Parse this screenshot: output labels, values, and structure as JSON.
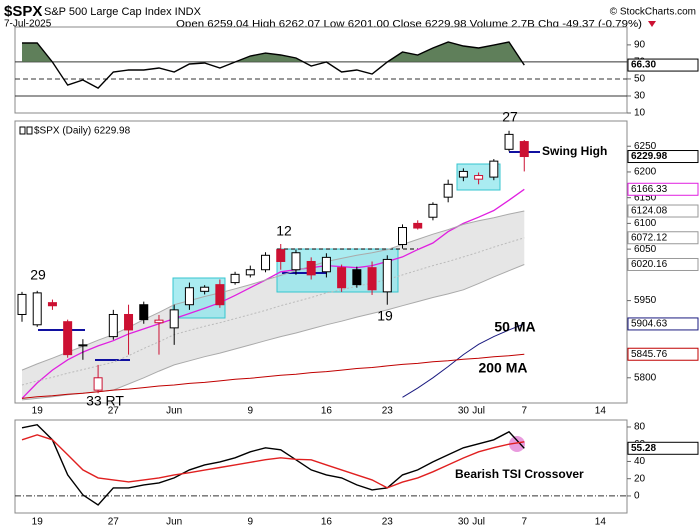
{
  "header": {
    "symbol": "$SPX",
    "name": "S&P 500 Large Cap Index INDX",
    "copyright": "© StockCharts.com",
    "date": "7-Jul-2025",
    "quote": "Open 6259.04 High 6262.07 Low 6201.00 Close 6229.98 Volume 2.7B Chg -49.37 (-0.79%)"
  },
  "chart_data": [
    {
      "type": "line",
      "ylim": [
        10,
        111
      ],
      "yticks": [
        10,
        30,
        50,
        70,
        90
      ],
      "fill_color": "#5f7f5a",
      "series": [
        {
          "color": "#000000",
          "values": [
            92.2,
            92.2,
            69.9,
            42.8,
            48.7,
            39.3,
            58.1,
            60.5,
            60.5,
            62.8,
            58.1,
            67.5,
            68.7,
            62.8,
            69.9,
            76.9,
            80.4,
            78.1,
            74.6,
            65.2,
            69.9,
            58.1,
            60.5,
            55.8,
            69.9,
            81.6,
            78.1,
            86.3,
            93.4,
            88.7,
            86.3,
            89.8,
            93.4,
            66.3,
            null,
            null,
            null,
            null,
            null,
            null
          ]
        }
      ],
      "tags": [
        {
          "value": 66.3,
          "label": "66.30",
          "color": "#000000"
        }
      ]
    },
    {
      "type": "candlestick",
      "label": "$SPX (Daily) 6229.98",
      "ylim": [
        5751,
        6299
      ],
      "yticks": [
        5800,
        5950,
        6050,
        6100,
        6150,
        6200,
        6250
      ],
      "categories": [
        null,
        "19",
        null,
        null,
        null,
        null,
        "27",
        null,
        null,
        null,
        "Jun",
        null,
        null,
        null,
        null,
        "9",
        null,
        null,
        null,
        null,
        "16",
        null,
        null,
        null,
        "23",
        null,
        null,
        null,
        null,
        "30",
        "Jul",
        null,
        null,
        "7",
        null,
        null,
        null,
        null,
        "14",
        null
      ],
      "open": [
        5923,
        5903,
        5946,
        5909,
        5862,
        5776,
        5880,
        5923,
        5942,
        5907,
        5897,
        5942,
        5968,
        5981,
        5985,
        6000,
        6010,
        6049,
        6010,
        6026,
        6006,
        6014,
        6010,
        6014,
        5967,
        6059,
        6100,
        6112,
        6151,
        6190,
        6186,
        6190,
        6244,
        6259.04,
        null,
        null,
        null,
        null,
        null,
        null
      ],
      "high": [
        5967,
        5969,
        5952,
        5913,
        5875,
        5825,
        5932,
        5942,
        5948,
        5922,
        5942,
        5985,
        5980,
        5991,
        6006,
        6018,
        6044,
        6060,
        6049,
        6034,
        6042,
        6020,
        6016,
        6026,
        6038,
        6098,
        6106,
        6141,
        6185,
        6207,
        6199,
        6225,
        6280,
        6262.07,
        null,
        null,
        null,
        null,
        null,
        null
      ],
      "low": [
        5909,
        5899,
        5932,
        5839,
        5835,
        5770,
        5874,
        5845,
        5905,
        5845,
        5864,
        5932,
        5962,
        5936,
        5981,
        5995,
        6005,
        6010,
        6000,
        5991,
        5995,
        5967,
        5975,
        5961,
        5942,
        6051,
        6088,
        6106,
        6141,
        6182,
        6176,
        6184,
        6240,
        6201,
        null,
        null,
        null,
        null,
        null,
        null
      ],
      "close": [
        5962,
        5965,
        5940,
        5845,
        5864,
        5800,
        5923,
        5893,
        5913,
        5912,
        5932,
        5975,
        5976,
        5942,
        6001,
        6010,
        6038,
        6026,
        6043,
        6000,
        6034,
        5975,
        5981,
        5971,
        6030,
        6092,
        6091,
        6137,
        6176,
        6201,
        6193,
        6221,
        6273,
        6229.98,
        null,
        null,
        null,
        null,
        null,
        null
      ],
      "up_color": "#000000",
      "down_color": "#cc1133",
      "band_color": "#e6e6e6",
      "series": [
        {
          "color": "#e020e0",
          "values": [
            5760,
            5790,
            5815,
            5835,
            5850,
            5862,
            5872,
            5885,
            5895,
            5905,
            5915,
            5925,
            5935,
            5946,
            5960,
            5975,
            5990,
            6006,
            6010,
            6014,
            6018,
            6016,
            6014,
            6018,
            6026,
            6035,
            6049,
            6062,
            6084,
            6100,
            6112,
            6125,
            6145,
            6166.33,
            null,
            null,
            null,
            null,
            null,
            null
          ]
        },
        {
          "color": "#aaaaaa",
          "values": [
            5815,
            5827,
            5838,
            5850,
            5861,
            5873,
            5884,
            5898,
            5913,
            5927,
            5942,
            5950,
            5958,
            5965,
            5973,
            5981,
            5990,
            5999,
            6008,
            6017,
            6026,
            6032,
            6038,
            6043,
            6049,
            6059,
            6069,
            6079,
            6088,
            6098,
            6105,
            6111,
            6118,
            6124.08,
            null,
            null,
            null,
            null,
            null,
            null
          ]
        },
        {
          "color": "#bbbbbb",
          "dashed": true,
          "values": [
            5786,
            5794,
            5801,
            5809,
            5816,
            5823,
            5830,
            5843,
            5857,
            5870,
            5884,
            5892,
            5900,
            5907,
            5915,
            5923,
            5931,
            5940,
            5948,
            5956,
            5965,
            5971,
            5978,
            5984,
            5991,
            6000,
            6009,
            6018,
            6026,
            6035,
            6044,
            6054,
            6063,
            6072.12,
            null,
            null,
            null,
            null,
            null,
            null
          ]
        },
        {
          "color": "#aaaaaa",
          "values": [
            5757,
            5760,
            5763,
            5767,
            5770,
            5773,
            5776,
            5788,
            5800,
            5813,
            5825,
            5833,
            5841,
            5848,
            5856,
            5864,
            5872,
            5880,
            5887,
            5895,
            5903,
            5910,
            5918,
            5925,
            5932,
            5940,
            5948,
            5956,
            5963,
            5971,
            5983,
            5996,
            6008,
            6020.16,
            null,
            null,
            null,
            null,
            null,
            null
          ]
        },
        {
          "name": "50 MA",
          "color": "#1a1a80",
          "values": [
            null,
            null,
            null,
            null,
            null,
            null,
            null,
            null,
            null,
            null,
            null,
            null,
            null,
            null,
            null,
            null,
            null,
            null,
            null,
            null,
            null,
            null,
            null,
            null,
            null,
            5762,
            5780,
            5800,
            5822,
            5845,
            5865,
            5880,
            5893,
            5904.63,
            null,
            null,
            null,
            null,
            null,
            null
          ]
        },
        {
          "name": "200 MA",
          "color": "#c00000",
          "values": [
            5760,
            5763,
            5765,
            5768,
            5770,
            5773,
            5776,
            5778,
            5781,
            5784,
            5786,
            5789,
            5791,
            5794,
            5797,
            5799,
            5802,
            5805,
            5807,
            5810,
            5812,
            5815,
            5818,
            5820,
            5823,
            5826,
            5828,
            5831,
            5833,
            5836,
            5838,
            5841,
            5843,
            5845.76,
            null,
            null,
            null,
            null,
            null,
            null
          ]
        }
      ],
      "tags": [
        {
          "value": 6229.98,
          "color": "#000000"
        },
        {
          "value": 6166.33,
          "color": "#e020e0"
        },
        {
          "value": 6124.08,
          "color": "#999999"
        },
        {
          "value": 6072.12,
          "color": "#999999"
        },
        {
          "value": 6020.16,
          "color": "#999999"
        },
        {
          "value": 5904.63,
          "color": "#1a1a80"
        },
        {
          "value": 5845.76,
          "color": "#c00000"
        }
      ],
      "annotations": [
        "29",
        "33 RT",
        "12",
        "19",
        "27",
        "Swing High"
      ]
    },
    {
      "type": "line",
      "ylim": [
        -19.8,
        88.1
      ],
      "yticks": [
        0,
        20,
        40,
        60,
        80
      ],
      "series": [
        {
          "color": "#000000",
          "values": [
            79.1,
            82.6,
            65.1,
            24.4,
            1.2,
            -10.5,
            9.3,
            9.3,
            12.8,
            15.1,
            20.9,
            30.2,
            36,
            39.5,
            44.2,
            51.2,
            55.8,
            53.5,
            41.9,
            30.2,
            24.4,
            20.9,
            12.8,
            7,
            9.3,
            24.4,
            30.2,
            39.5,
            47.7,
            55.8,
            60.5,
            65.1,
            74.4,
            55.28,
            null,
            null,
            null,
            null,
            null,
            null
          ]
        },
        {
          "color": "#e02020",
          "values": [
            65.1,
            70.9,
            65.1,
            47.7,
            30.2,
            20.9,
            18.6,
            16.3,
            18.6,
            20.9,
            24.4,
            27,
            30,
            33,
            36,
            39,
            42,
            44.2,
            42.5,
            41.9,
            36,
            30.2,
            24.4,
            18.6,
            9.3,
            16,
            20.9,
            28,
            36,
            44,
            51.2,
            56,
            60,
            62.8,
            null,
            null,
            null,
            null,
            null,
            null
          ]
        }
      ],
      "tags": [
        {
          "value": 55.28,
          "color": "#000000"
        }
      ],
      "annotations": [
        "Bearish TSI Crossover"
      ]
    }
  ]
}
